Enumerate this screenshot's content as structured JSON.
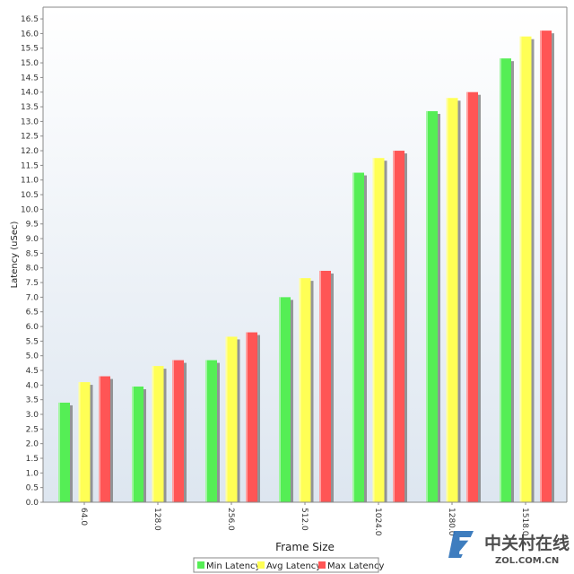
{
  "chart_data": {
    "type": "bar",
    "title": "",
    "xlabel": "Frame Size",
    "ylabel": "Latency (uSec)",
    "categories": [
      "64.0",
      "128.0",
      "256.0",
      "512.0",
      "1024.0",
      "1280.0",
      "1518.0"
    ],
    "series": [
      {
        "name": "Min Latency",
        "color": "#55ee55",
        "values": [
          3.4,
          3.95,
          4.85,
          7.0,
          11.25,
          13.35,
          15.15
        ]
      },
      {
        "name": "Avg Latency",
        "color": "#ffff55",
        "values": [
          4.1,
          4.65,
          5.65,
          7.65,
          11.75,
          13.8,
          15.9
        ]
      },
      {
        "name": "Max Latency",
        "color": "#ff5555",
        "values": [
          4.3,
          4.85,
          5.8,
          7.9,
          12.0,
          14.0,
          16.1
        ]
      }
    ],
    "ylim": [
      0,
      16.9
    ],
    "yticks": [
      "0.0",
      "0.5",
      "1.0",
      "1.5",
      "2.0",
      "2.5",
      "3.0",
      "3.5",
      "4.0",
      "4.5",
      "5.0",
      "5.5",
      "6.0",
      "6.5",
      "7.0",
      "7.5",
      "8.0",
      "8.5",
      "9.0",
      "9.5",
      "10.0",
      "10.5",
      "11.0",
      "11.5",
      "12.0",
      "12.5",
      "13.0",
      "13.5",
      "14.0",
      "14.5",
      "15.0",
      "15.5",
      "16.0",
      "16.5"
    ],
    "grid": false,
    "legend_position": "bottom-center"
  },
  "watermark": {
    "logo_letter": "Z",
    "text_cn": "中关村在线",
    "text_en": "ZOL.COM.CN"
  },
  "colors": {
    "plot_background_top": "#ffffff",
    "plot_background_bottom": "#dde6f0",
    "axis_line": "#888888"
  }
}
